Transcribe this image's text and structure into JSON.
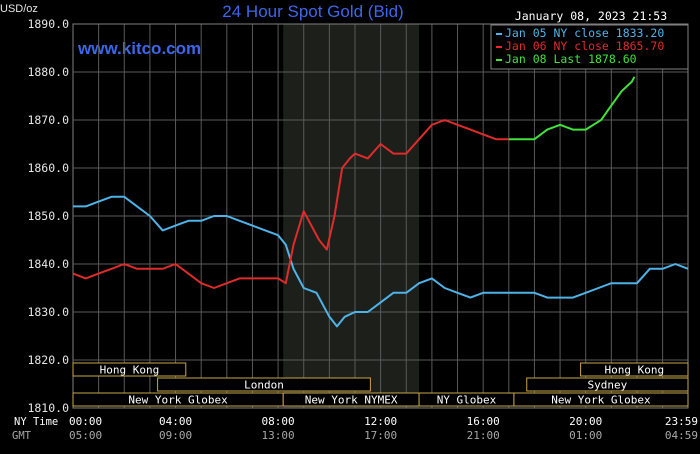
{
  "header": {
    "unit_label": "USD/oz",
    "title": "24 Hour Spot Gold (Bid)",
    "datetime": "January 08, 2023 21:53",
    "watermark": "www.kitco.com"
  },
  "legend": [
    {
      "label": "Jan 05 NY close 1833.20",
      "color": "#4fb3e8"
    },
    {
      "label": "Jan 06 NY close 1865.70",
      "color": "#e02b2b"
    },
    {
      "label": "Jan 08 Last 1878.60",
      "color": "#41e23a"
    }
  ],
  "time_axis": {
    "ny_time_label": "NY Time",
    "gmt_label": "GMT",
    "ny_ticks": [
      "00:00",
      "04:00",
      "08:00",
      "12:00",
      "16:00",
      "20:00",
      "23:59"
    ],
    "gmt_ticks": [
      "05:00",
      "09:00",
      "13:00",
      "17:00",
      "21:00",
      "01:00",
      "04:59"
    ]
  },
  "sessions": [
    {
      "label": "Hong Kong",
      "start": 0,
      "end": 4.4,
      "row": 1
    },
    {
      "label": "Hong Kong",
      "start": 19.8,
      "end": 23.99,
      "row": 1
    },
    {
      "label": "London",
      "start": 3.3,
      "end": 11.6,
      "row": 2
    },
    {
      "label": "Sydney",
      "start": 17.7,
      "end": 23.99,
      "row": 2
    },
    {
      "label": "New York Globex",
      "start": 0,
      "end": 8.2,
      "row": 3
    },
    {
      "label": "New York NYMEX",
      "start": 8.2,
      "end": 13.5,
      "row": 3
    },
    {
      "label": "NY Globex",
      "start": 13.5,
      "end": 17.2,
      "row": 3
    },
    {
      "label": "New York Globex",
      "start": 17.2,
      "end": 23.99,
      "row": 3
    }
  ],
  "chart_data": {
    "type": "line",
    "title": "24 Hour Spot Gold (Bid)",
    "ylabel": "USD/oz",
    "xlabel": "NY Time",
    "ylim": [
      1810,
      1890
    ],
    "xlim": [
      0,
      23.99
    ],
    "y_ticks": [
      "1810.0",
      "1820.0",
      "1830.0",
      "1840.0",
      "1850.0",
      "1860.0",
      "1870.0",
      "1880.0",
      "1890.0"
    ],
    "grid": true,
    "legend_position": "top-right",
    "shaded_region": {
      "start": 8.2,
      "end": 13.5,
      "label": "NYMEX session"
    },
    "series": [
      {
        "name": "Jan 05 NY close 1833.20",
        "color": "#4fb3e8",
        "x": [
          0,
          0.5,
          1,
          1.5,
          2,
          2.5,
          3,
          3.5,
          4,
          4.5,
          5,
          5.5,
          6,
          6.5,
          7,
          7.5,
          8,
          8.3,
          8.6,
          9,
          9.5,
          9.8,
          10,
          10.3,
          10.6,
          11,
          11.5,
          12,
          12.5,
          13,
          13.5,
          14,
          14.5,
          15,
          15.5,
          16,
          16.5,
          17,
          17.5,
          18,
          18.5,
          19,
          19.5,
          20,
          20.5,
          21,
          21.5,
          22,
          22.5,
          23,
          23.5,
          23.99
        ],
        "y": [
          1852,
          1852,
          1853,
          1854,
          1854,
          1852,
          1850,
          1847,
          1848,
          1849,
          1849,
          1850,
          1850,
          1849,
          1848,
          1847,
          1846,
          1844,
          1839,
          1835,
          1834,
          1831,
          1829,
          1827,
          1829,
          1830,
          1830,
          1832,
          1834,
          1834,
          1836,
          1837,
          1835,
          1834,
          1833,
          1834,
          1834,
          1834,
          1834,
          1834,
          1833,
          1833,
          1833,
          1834,
          1835,
          1836,
          1836,
          1836,
          1839,
          1839,
          1840,
          1839
        ]
      },
      {
        "name": "Jan 06 NY close 1865.70",
        "color": "#e02b2b",
        "x": [
          0,
          0.5,
          1,
          1.5,
          2,
          2.5,
          3,
          3.5,
          4,
          4.5,
          5,
          5.5,
          6,
          6.5,
          7,
          7.5,
          8,
          8.3,
          8.6,
          9,
          9.3,
          9.6,
          9.9,
          10.2,
          10.5,
          10.8,
          11,
          11.5,
          12,
          12.5,
          13,
          13.5,
          14,
          14.5,
          15,
          15.5,
          16,
          16.5,
          17
        ],
        "y": [
          1838,
          1837,
          1838,
          1839,
          1840,
          1839,
          1839,
          1839,
          1840,
          1838,
          1836,
          1835,
          1836,
          1837,
          1837,
          1837,
          1837,
          1836,
          1844,
          1851,
          1848,
          1845,
          1843,
          1850,
          1860,
          1862,
          1863,
          1862,
          1865,
          1863,
          1863,
          1866,
          1869,
          1870,
          1869,
          1868,
          1867,
          1866,
          1866
        ]
      },
      {
        "name": "Jan 08 Last 1878.60",
        "color": "#41e23a",
        "x": [
          17,
          17.5,
          18,
          18.5,
          19,
          19.5,
          20,
          20.3,
          20.6,
          21,
          21.4,
          21.8,
          21.9
        ],
        "y": [
          1866,
          1866,
          1866,
          1868,
          1869,
          1868,
          1868,
          1869,
          1870,
          1873,
          1876,
          1878,
          1879
        ]
      }
    ]
  }
}
